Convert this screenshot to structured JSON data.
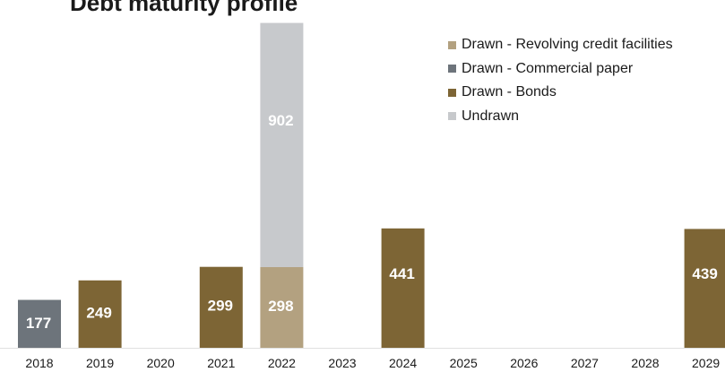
{
  "chart_data": {
    "type": "bar",
    "title": "Debt maturity profile",
    "categories": [
      "2018",
      "2019",
      "2020",
      "2021",
      "2022",
      "2023",
      "2024",
      "2025",
      "2026",
      "2027",
      "2028",
      "2029"
    ],
    "series": [
      {
        "name": "Drawn - Revolving credit facilities",
        "color": "#b3a180",
        "values": [
          0,
          0,
          0,
          0,
          298,
          0,
          0,
          0,
          0,
          0,
          0,
          0
        ]
      },
      {
        "name": "Drawn - Commercial paper",
        "color": "#6d747b",
        "values": [
          177,
          0,
          0,
          0,
          0,
          0,
          0,
          0,
          0,
          0,
          0,
          0
        ]
      },
      {
        "name": "Drawn - Bonds",
        "color": "#7d6535",
        "values": [
          0,
          249,
          0,
          299,
          0,
          0,
          441,
          0,
          0,
          0,
          0,
          439
        ]
      },
      {
        "name": "Undrawn",
        "color": "#c7c9cc",
        "values": [
          0,
          0,
          0,
          0,
          902,
          0,
          0,
          0,
          0,
          0,
          0,
          0
        ]
      }
    ],
    "stack_order": [
      "Drawn - Commercial paper",
      "Drawn - Bonds",
      "Drawn - Revolving credit facilities",
      "Undrawn"
    ],
    "legend_position": "top-right",
    "grid": false,
    "ylim": [
      0,
      1245
    ]
  }
}
